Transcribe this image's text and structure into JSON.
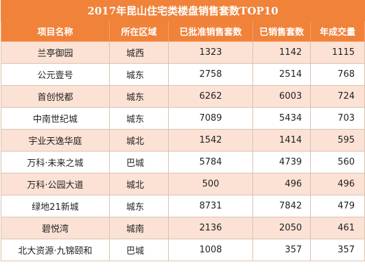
{
  "title": "2017年昆山住宅类楼盘销售套数TOP10",
  "headers": [
    "项目名称",
    "所在区域",
    "已批准销售套数",
    "已销售套数",
    "年成交量"
  ],
  "rows": [
    {
      "name": "兰亭御园",
      "district": "城西",
      "approved": "1323",
      "sold": "1142",
      "deals": "1115"
    },
    {
      "name": "公元壹号",
      "district": "城东",
      "approved": "2758",
      "sold": "2514",
      "deals": "768"
    },
    {
      "name": "首创悦都",
      "district": "城东",
      "approved": "6262",
      "sold": "6003",
      "deals": "724"
    },
    {
      "name": "中南世纪城",
      "district": "城东",
      "approved": "7089",
      "sold": "5434",
      "deals": "703"
    },
    {
      "name": "宇业天逸华庭",
      "district": "城北",
      "approved": "1542",
      "sold": "1414",
      "deals": "595"
    },
    {
      "name": "万科·未来之城",
      "district": "巴城",
      "approved": "5784",
      "sold": "4739",
      "deals": "560"
    },
    {
      "name": "万科·公园大道",
      "district": "城北",
      "approved": "500",
      "sold": "496",
      "deals": "496"
    },
    {
      "name": "绿地21新城",
      "district": "城东",
      "approved": "8731",
      "sold": "7842",
      "deals": "479"
    },
    {
      "name": "碧悦湾",
      "district": "城南",
      "approved": "2136",
      "sold": "2050",
      "deals": "461"
    },
    {
      "name": "北大资源·九锦颐和",
      "district": "巴城",
      "approved": "1008",
      "sold": "357",
      "deals": "357"
    }
  ]
}
